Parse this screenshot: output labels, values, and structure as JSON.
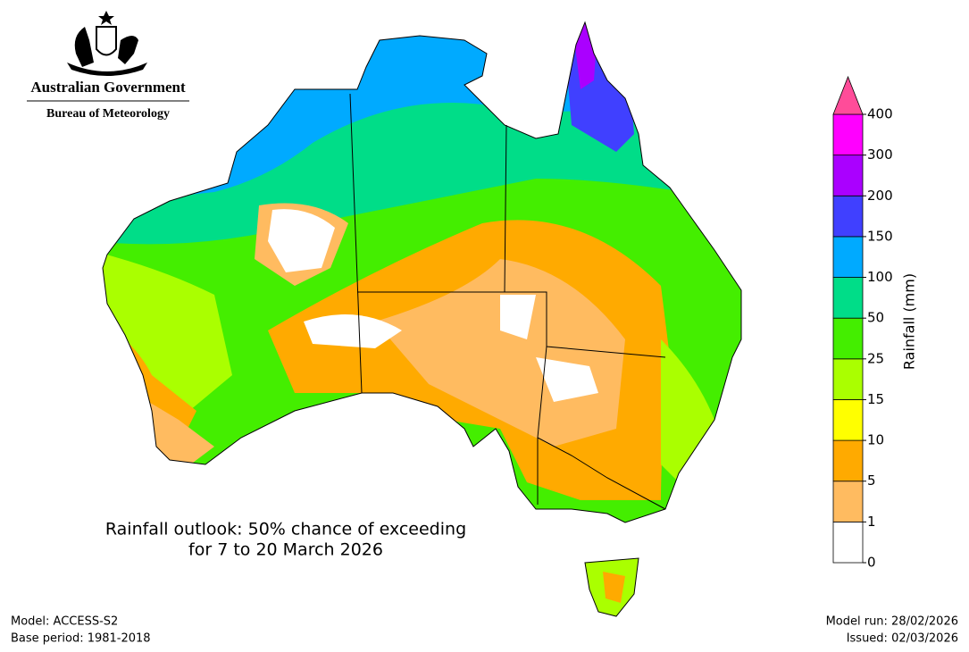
{
  "header": {
    "government": "Australian Government",
    "agency": "Bureau of Meteorology"
  },
  "title": [
    "Rainfall outlook: 50% chance of exceeding",
    "for 7 to 20 March 2026"
  ],
  "legend": {
    "label": "Rainfall (mm)",
    "ticks": [
      0,
      1,
      5,
      10,
      15,
      25,
      50,
      100,
      150,
      200,
      300,
      400
    ],
    "colors": [
      "#ffffff",
      "#ffbb60",
      "#ffaa00",
      "#ffff00",
      "#aaff00",
      "#44ee00",
      "#00dd88",
      "#00aaff",
      "#4040ff",
      "#aa00ff",
      "#ff00ff"
    ],
    "extend_color": "#ff4c99"
  },
  "footer": {
    "model": "Model: ACCESS-S2",
    "base_period": "Base period: 1981-2018",
    "model_run": "Model run: 28/02/2026",
    "issued": "Issued: 02/03/2026"
  }
}
